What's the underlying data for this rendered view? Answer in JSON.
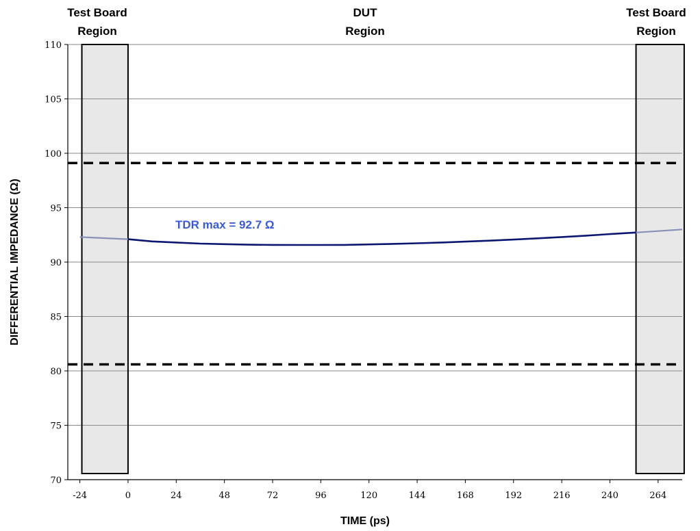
{
  "chart_data": {
    "type": "line",
    "title": "",
    "xlabel": "TIME (ps)",
    "ylabel": "DIFFERENTIAL IMPEDANCE (Ω)",
    "xlim": [
      -30,
      276
    ],
    "ylim": [
      70,
      110
    ],
    "xticks": [
      -24,
      0,
      24,
      48,
      72,
      96,
      120,
      144,
      168,
      192,
      216,
      240,
      264
    ],
    "yticks": [
      70,
      75,
      80,
      85,
      90,
      95,
      100,
      105,
      110
    ],
    "grid": "horizontal",
    "regions": [
      {
        "label_line1": "Test Board",
        "label_line2": "Region",
        "x_start": -23,
        "x_end": 0
      },
      {
        "label_line1": "DUT",
        "label_line2": "Region",
        "x_start": 0,
        "x_end": 253
      },
      {
        "label_line1": "Test Board",
        "label_line2": "Region",
        "x_start": 253,
        "x_end": 277
      }
    ],
    "limits": [
      99.1,
      80.6
    ],
    "series": [
      {
        "color": "#0b1670",
        "x": [
          -24,
          -12,
          0,
          12,
          24,
          36,
          48,
          60,
          72,
          84,
          96,
          108,
          120,
          132,
          144,
          156,
          168,
          180,
          192,
          204,
          216,
          228,
          240,
          253,
          264,
          276
        ],
        "y": [
          92.3,
          92.2,
          92.1,
          91.9,
          91.8,
          91.7,
          91.65,
          91.6,
          91.58,
          91.57,
          91.57,
          91.58,
          91.62,
          91.67,
          91.73,
          91.8,
          91.88,
          91.97,
          92.07,
          92.18,
          92.3,
          92.43,
          92.57,
          92.72,
          92.85,
          93.0
        ]
      }
    ],
    "annotation": {
      "text": "TDR max = 92.7 Ω",
      "color": "#3a5bd9"
    }
  }
}
